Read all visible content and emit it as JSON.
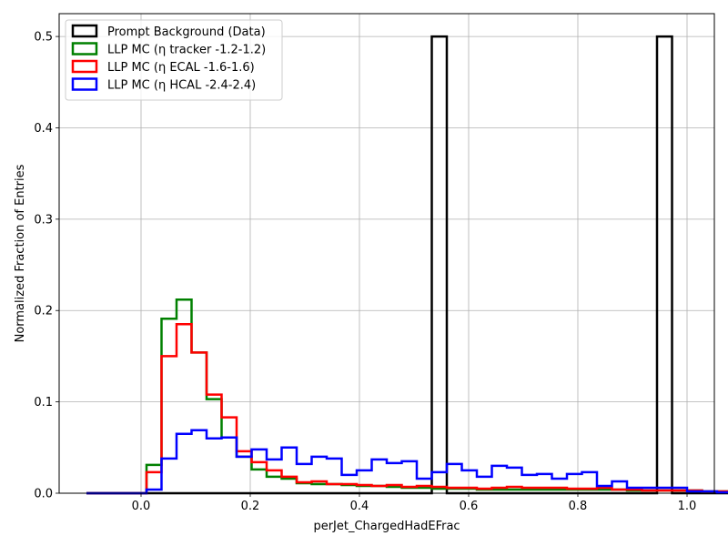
{
  "chart_data": {
    "type": "histogram-step",
    "xlabel": "perJet_ChargedHadEFrac",
    "ylabel": "Normalized Fraction of Entries",
    "xlim": [
      -0.15,
      1.05
    ],
    "ylim": [
      0,
      0.525
    ],
    "grid": true,
    "legend_position": "top-left",
    "x_ticks": [
      "0.0",
      "0.2",
      "0.4",
      "0.6",
      "0.8",
      "1.0"
    ],
    "x_tick_values": [
      0.0,
      0.2,
      0.4,
      0.6,
      0.8,
      1.0
    ],
    "y_ticks": [
      "0.0",
      "0.1",
      "0.2",
      "0.3",
      "0.4",
      "0.5"
    ],
    "y_tick_values": [
      0.0,
      0.1,
      0.2,
      0.3,
      0.4,
      0.5
    ],
    "bin_start": -0.1,
    "bin_width": 0.0275,
    "series": [
      {
        "name": "Prompt Background (Data)",
        "color": "#000000",
        "values": [
          0,
          0,
          0,
          0,
          0,
          0,
          0,
          0,
          0,
          0,
          0,
          0,
          0,
          0,
          0,
          0,
          0,
          0,
          0,
          0,
          0,
          0,
          0,
          0.5,
          0,
          0,
          0,
          0,
          0,
          0,
          0,
          0,
          0,
          0,
          0,
          0,
          0,
          0,
          0.5,
          0,
          0,
          0,
          0,
          0,
          0,
          0,
          0,
          0,
          0,
          0
        ]
      },
      {
        "name": "LLP MC (η tracker -1.2-1.2)",
        "color": "#008000",
        "values": [
          0,
          0,
          0,
          0,
          0.031,
          0.191,
          0.212,
          0.154,
          0.103,
          0.061,
          0.04,
          0.026,
          0.018,
          0.016,
          0.011,
          0.01,
          0.01,
          0.009,
          0.008,
          0.008,
          0.007,
          0.006,
          0.006,
          0.005,
          0.005,
          0.005,
          0.004,
          0.004,
          0.004,
          0.004,
          0.004,
          0.004,
          0.004,
          0.004,
          0.004,
          0.004,
          0.003,
          0.003,
          0.003,
          0.003,
          0.003,
          0.002,
          0.002,
          0.002,
          0.002,
          0.002,
          0.001,
          0.001,
          0.001,
          0.001
        ]
      },
      {
        "name": "LLP MC (η ECAL -1.6-1.6)",
        "color": "#ff0000",
        "values": [
          0,
          0,
          0,
          0,
          0.023,
          0.15,
          0.185,
          0.154,
          0.108,
          0.083,
          0.046,
          0.034,
          0.025,
          0.018,
          0.012,
          0.013,
          0.01,
          0.01,
          0.009,
          0.008,
          0.009,
          0.007,
          0.008,
          0.007,
          0.006,
          0.006,
          0.005,
          0.006,
          0.007,
          0.006,
          0.006,
          0.006,
          0.005,
          0.005,
          0.006,
          0.004,
          0.004,
          0.003,
          0.003,
          0.003,
          0.003,
          0.002,
          0.002,
          0.002,
          0.001,
          0.001,
          0.001,
          0.001,
          0.001,
          0.001
        ]
      },
      {
        "name": "LLP MC (η HCAL -2.4-2.4)",
        "color": "#0000ff",
        "values": [
          0,
          0,
          0,
          0,
          0.004,
          0.038,
          0.065,
          0.069,
          0.06,
          0.061,
          0.04,
          0.048,
          0.037,
          0.05,
          0.032,
          0.04,
          0.038,
          0.02,
          0.025,
          0.037,
          0.033,
          0.035,
          0.016,
          0.023,
          0.032,
          0.025,
          0.018,
          0.03,
          0.028,
          0.02,
          0.021,
          0.016,
          0.021,
          0.023,
          0.008,
          0.013,
          0.006,
          0.006,
          0.006,
          0.006,
          0.002,
          0.002,
          0.001,
          0.001,
          0.001,
          0.001,
          0,
          0,
          0,
          0
        ]
      }
    ]
  }
}
